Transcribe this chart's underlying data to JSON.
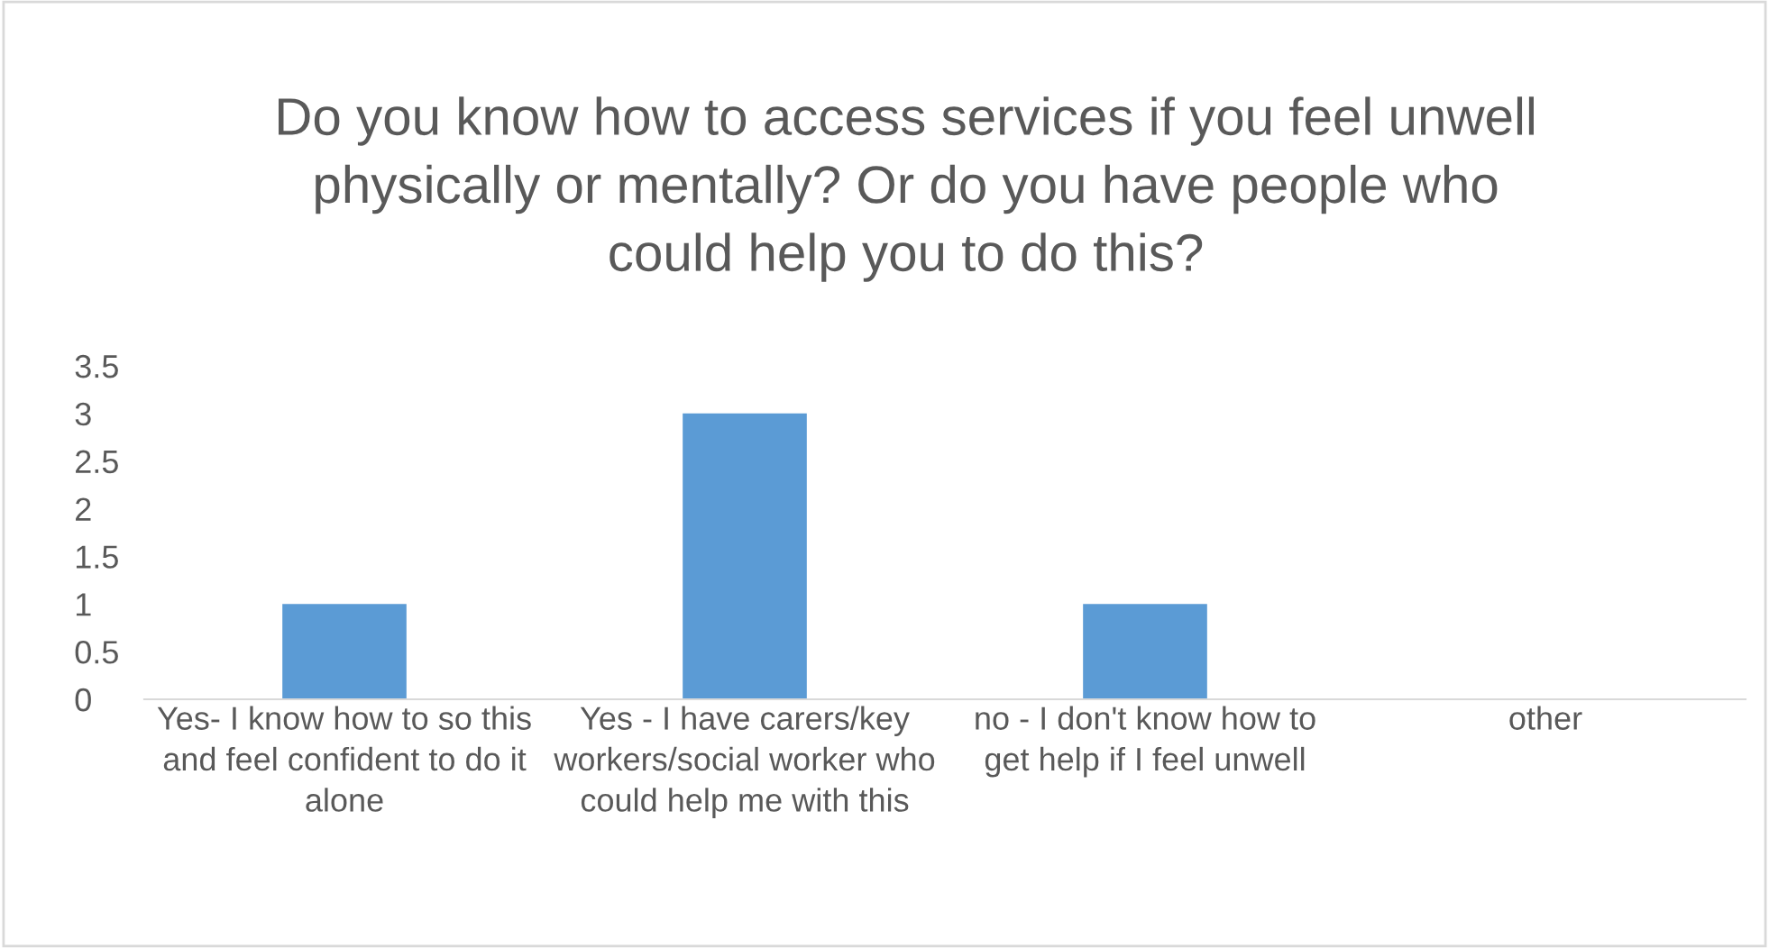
{
  "chart_data": {
    "type": "bar",
    "title": "Do you know how to access services if you feel unwell physically or mentally? Or do you have people who could help you to do this?",
    "categories": [
      "Yes- I know how to so this and feel confident to do it alone",
      "Yes - I have carers/key workers/social worker who could help me with this",
      "no - I don't know how to get help if I feel unwell",
      "other"
    ],
    "values": [
      1,
      3,
      1,
      0
    ],
    "color": "#5b9bd5",
    "ylim": [
      0,
      3.5
    ],
    "yticks": [
      0,
      0.5,
      1,
      1.5,
      2,
      2.5,
      3,
      3.5
    ],
    "grid": false,
    "legend": false
  }
}
